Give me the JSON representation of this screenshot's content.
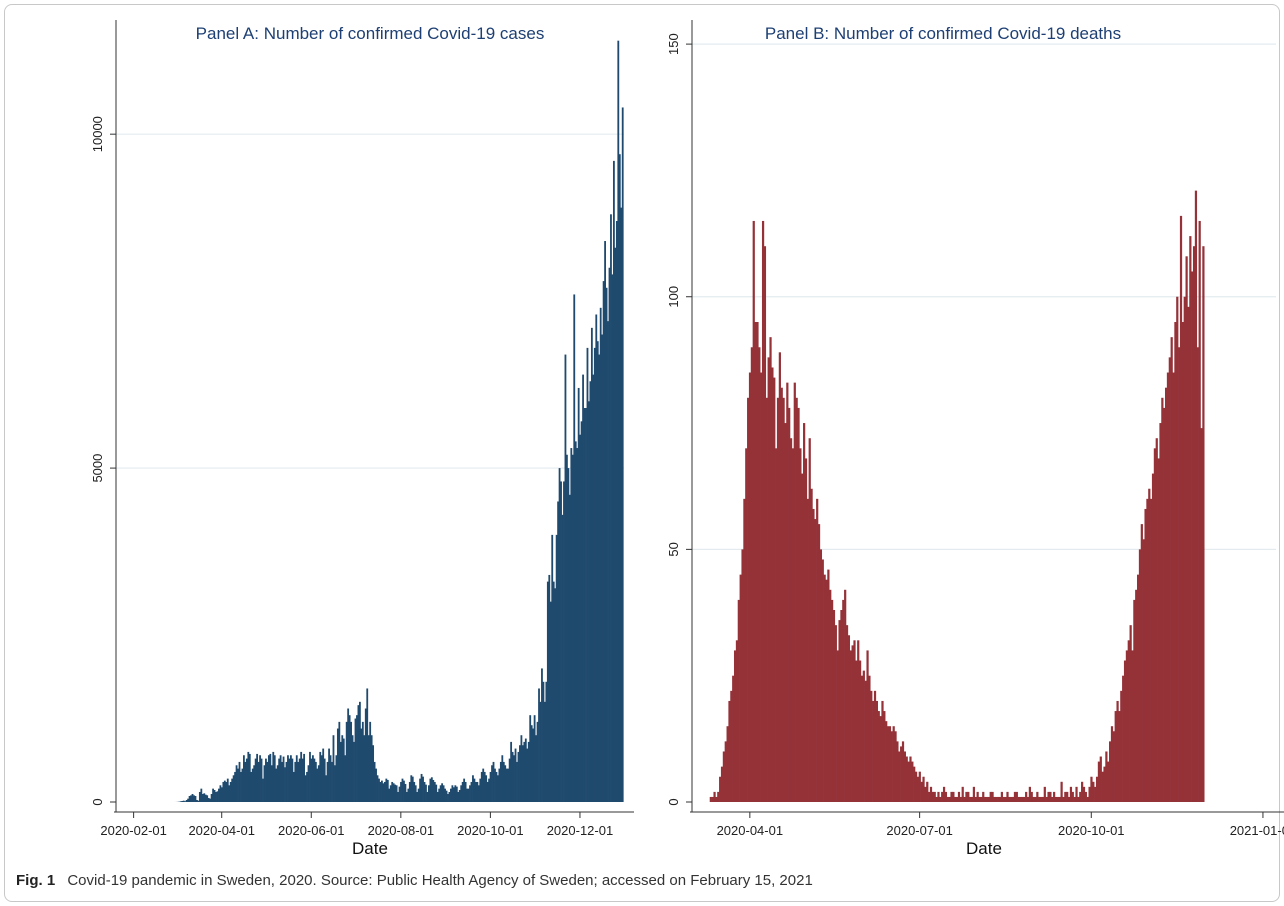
{
  "caption": {
    "label": "Fig. 1",
    "text": "Covid-19 pandemic in Sweden, 2020. Source: Public Health Agency of Sweden; accessed on February 15, 2021"
  },
  "colors": {
    "panel_a_bars": "#1f4a6e",
    "panel_b_bars": "#943238",
    "title": "#1d3f73",
    "grid": "#e3ebef",
    "axis": "#333333"
  },
  "chart_data": [
    {
      "type": "bar",
      "title": "Panel A: Number of confirmed Covid-19 cases",
      "xlabel": "Date",
      "ylabel": "",
      "x_ticks": [
        "2020-02-01",
        "2020-04-01",
        "2020-06-01",
        "2020-08-01",
        "2020-10-01",
        "2020-12-01"
      ],
      "xlim": [
        "2020-01-20",
        "2020-12-31"
      ],
      "y_ticks": [
        0,
        5000,
        10000
      ],
      "ylim": [
        0,
        11500
      ],
      "grid": true,
      "start_date": "2020-02-04",
      "series": [
        {
          "values": [
            0,
            0,
            0,
            0,
            0,
            0,
            0,
            0,
            0,
            0,
            0,
            0,
            0,
            0,
            0,
            0,
            0,
            0,
            0,
            0,
            0,
            0,
            0,
            0,
            0,
            0,
            1,
            2,
            5,
            10,
            15,
            20,
            12,
            30,
            50,
            90,
            100,
            120,
            100,
            90,
            30,
            20,
            150,
            200,
            120,
            130,
            110,
            100,
            60,
            50,
            120,
            200,
            180,
            150,
            160,
            200,
            250,
            220,
            300,
            320,
            300,
            350,
            250,
            300,
            350,
            400,
            450,
            550,
            500,
            600,
            450,
            500,
            700,
            600,
            650,
            750,
            720,
            450,
            500,
            550,
            650,
            720,
            600,
            700,
            650,
            350,
            550,
            650,
            600,
            700,
            720,
            550,
            750,
            700,
            500,
            550,
            650,
            700,
            600,
            680,
            520,
            600,
            700,
            650,
            700,
            650,
            450,
            600,
            700,
            600,
            650,
            750,
            650,
            720,
            400,
            450,
            550,
            750,
            650,
            700,
            650,
            600,
            500,
            550,
            750,
            700,
            800,
            650,
            400,
            600,
            800,
            700,
            600,
            1000,
            550,
            700,
            1100,
            1200,
            900,
            1000,
            950,
            700,
            1200,
            1400,
            1300,
            1200,
            1000,
            900,
            1250,
            1300,
            1450,
            1500,
            1100,
            1200,
            1000,
            1400,
            1700,
            1000,
            1200,
            1000,
            850,
            600,
            500,
            400,
            350,
            300,
            320,
            280,
            300,
            350,
            330,
            200,
            250,
            300,
            280,
            260,
            250,
            150,
            230,
            300,
            350,
            320,
            270,
            150,
            200,
            300,
            400,
            380,
            300,
            250,
            150,
            200,
            350,
            420,
            380,
            300,
            260,
            150,
            250,
            350,
            370,
            330,
            300,
            260,
            150,
            200,
            250,
            280,
            250,
            200,
            170,
            120,
            150,
            200,
            250,
            220,
            250,
            230,
            150,
            180,
            250,
            300,
            350,
            300,
            200,
            200,
            250,
            300,
            400,
            350,
            300,
            300,
            250,
            350,
            450,
            500,
            450,
            400,
            300,
            350,
            450,
            550,
            600,
            500,
            450,
            400,
            500,
            600,
            700,
            600,
            550,
            500,
            500,
            650,
            900,
            750,
            700,
            800,
            600,
            750,
            850,
            1000,
            850,
            900,
            950,
            800,
            900,
            1300,
            1150,
            1100,
            1300,
            1000,
            1200,
            1700,
            1500,
            2000,
            1800,
            1500,
            1800,
            3300,
            3400,
            3000,
            4000,
            3300,
            3200,
            4000,
            4500,
            5000,
            4800,
            4300,
            4800,
            6700,
            5200,
            5000,
            4600,
            5300,
            5200,
            7600,
            5400,
            5300,
            6200,
            5500,
            5700,
            6400,
            5900,
            5900,
            6800,
            6000,
            6300,
            7100,
            6400,
            6800,
            7300,
            6900,
            6700,
            7400,
            7000,
            7800,
            8400,
            7700,
            7200,
            8000,
            8800,
            7900,
            9600,
            8300,
            8700,
            11400,
            9700,
            8900,
            10400
          ]
        }
      ],
      "bar_color": "#1f4a6e"
    },
    {
      "type": "bar",
      "title": "Panel B: Number of confirmed Covid-19 deaths",
      "xlabel": "Date",
      "ylabel": "",
      "x_ticks": [
        "2020-04-01",
        "2020-07-01",
        "2020-10-01",
        "2021-01-01"
      ],
      "xlim": [
        "2020-03-01",
        "2021-01-08"
      ],
      "y_ticks": [
        0,
        50,
        100,
        150
      ],
      "ylim": [
        0,
        152
      ],
      "grid": true,
      "start_date": "2020-03-11",
      "series": [
        {
          "values": [
            1,
            1,
            2,
            1,
            2,
            5,
            7,
            10,
            12,
            15,
            20,
            22,
            25,
            30,
            32,
            40,
            45,
            50,
            60,
            70,
            80,
            85,
            90,
            115,
            95,
            95,
            90,
            85,
            115,
            110,
            80,
            88,
            92,
            86,
            84,
            70,
            80,
            89,
            82,
            80,
            75,
            83,
            78,
            72,
            70,
            83,
            80,
            78,
            70,
            65,
            75,
            68,
            60,
            72,
            62,
            58,
            56,
            60,
            55,
            50,
            48,
            45,
            44,
            46,
            42,
            40,
            38,
            35,
            30,
            36,
            38,
            40,
            42,
            35,
            33,
            30,
            31,
            32,
            28,
            32,
            28,
            25,
            26,
            24,
            30,
            25,
            22,
            20,
            22,
            20,
            18,
            17,
            20,
            18,
            16,
            15,
            15,
            14,
            15,
            14,
            12,
            10,
            11,
            12,
            10,
            9,
            8,
            9,
            8,
            7,
            6,
            5,
            6,
            4,
            5,
            3,
            4,
            2,
            3,
            2,
            2,
            1,
            2,
            1,
            2,
            3,
            2,
            1,
            1,
            2,
            2,
            1,
            1,
            2,
            1,
            3,
            1,
            2,
            2,
            1,
            1,
            3,
            1,
            2,
            1,
            1,
            2,
            1,
            1,
            1,
            2,
            2,
            1,
            1,
            1,
            1,
            2,
            1,
            1,
            2,
            1,
            1,
            1,
            2,
            2,
            1,
            1,
            1,
            1,
            2,
            1,
            3,
            2,
            1,
            1,
            2,
            1,
            1,
            1,
            3,
            1,
            2,
            2,
            1,
            2,
            1,
            1,
            1,
            4,
            1,
            2,
            2,
            1,
            3,
            2,
            1,
            3,
            1,
            2,
            4,
            3,
            2,
            1,
            3,
            5,
            4,
            3,
            5,
            8,
            9,
            6,
            7,
            10,
            8,
            12,
            15,
            14,
            18,
            20,
            18,
            22,
            25,
            28,
            30,
            32,
            35,
            30,
            40,
            42,
            45,
            50,
            55,
            52,
            58,
            60,
            62,
            60,
            65,
            70,
            72,
            68,
            75,
            80,
            78,
            82,
            85,
            88,
            92,
            85,
            95,
            100,
            90,
            116,
            95,
            100,
            108,
            98,
            112,
            105,
            110,
            121,
            90,
            115,
            74,
            110
          ]
        }
      ],
      "bar_color": "#943238"
    }
  ]
}
